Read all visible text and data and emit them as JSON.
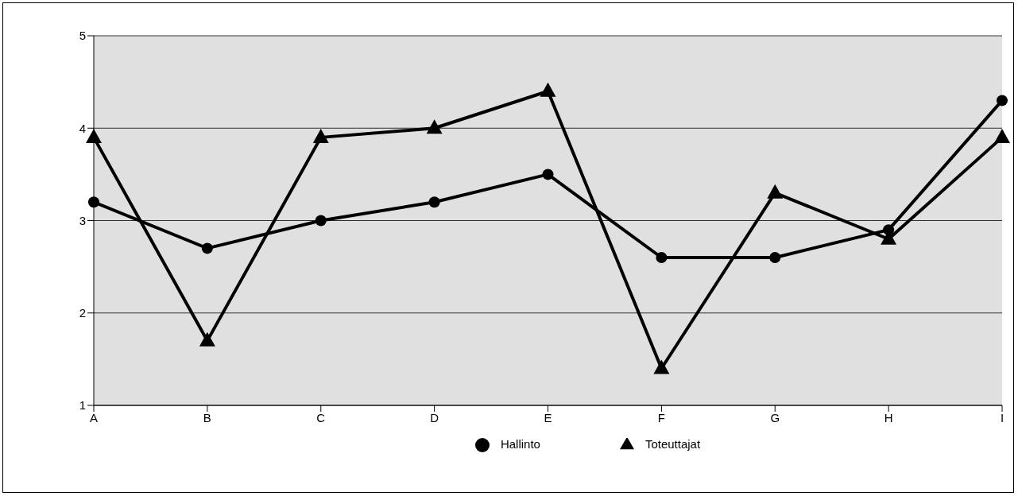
{
  "chart_data": {
    "type": "line",
    "categories": [
      "A",
      "B",
      "C",
      "D",
      "E",
      "F",
      "G",
      "H",
      "I"
    ],
    "series": [
      {
        "name": "Hallinto",
        "color": "#000000",
        "marker": "circle",
        "values": [
          3.2,
          2.7,
          3.0,
          3.2,
          3.5,
          2.6,
          2.6,
          2.9,
          4.3
        ]
      },
      {
        "name": "Toteuttajat",
        "color": "#000000",
        "marker": "triangle",
        "values": [
          3.9,
          1.7,
          3.9,
          4.0,
          4.4,
          1.4,
          3.3,
          2.8,
          3.9
        ]
      }
    ],
    "ylim": [
      1,
      5
    ],
    "yticks": [
      1,
      2,
      3,
      4,
      5
    ],
    "grid": "y",
    "legend": "bottom",
    "line_style": "solid"
  }
}
